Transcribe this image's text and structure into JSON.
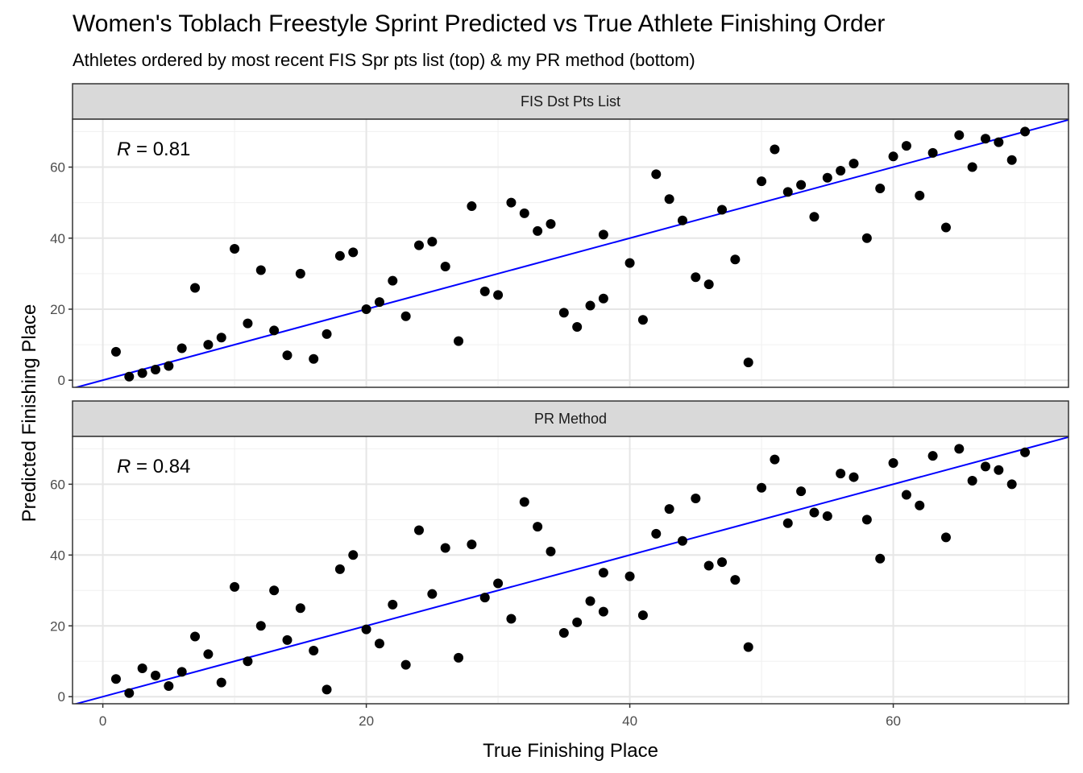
{
  "chart_data": {
    "type": "scatter",
    "title": "Women's Toblach Freestyle Sprint Predicted vs True Athlete Finishing Order",
    "subtitle": "Athletes ordered by most recent FIS Spr pts list (top) & my PR method (bottom)",
    "xlabel": "True Finishing Place",
    "ylabel": "Predicted Finishing Place",
    "xlim": [
      -2.3,
      73.3
    ],
    "ylim": [
      -2,
      73.5
    ],
    "x_ticks": [
      0,
      20,
      40,
      60
    ],
    "y_ticks": [
      0,
      20,
      40,
      60
    ],
    "grid": true,
    "reference_line": {
      "slope": 1,
      "intercept": 0,
      "color": "#0000ff"
    },
    "point_color": "#000000",
    "panels": [
      {
        "strip_label": "FIS Dst Pts List",
        "r_label": "R",
        "r_value": "= 0.81",
        "points": [
          [
            1,
            8
          ],
          [
            2,
            1
          ],
          [
            3,
            2
          ],
          [
            4,
            3
          ],
          [
            5,
            4
          ],
          [
            6,
            9
          ],
          [
            7,
            26
          ],
          [
            8,
            10
          ],
          [
            9,
            12
          ],
          [
            10,
            37
          ],
          [
            11,
            16
          ],
          [
            12,
            31
          ],
          [
            13,
            14
          ],
          [
            14,
            7
          ],
          [
            15,
            30
          ],
          [
            16,
            6
          ],
          [
            17,
            13
          ],
          [
            18,
            35
          ],
          [
            19,
            36
          ],
          [
            20,
            20
          ],
          [
            21,
            22
          ],
          [
            22,
            28
          ],
          [
            23,
            18
          ],
          [
            24,
            38
          ],
          [
            25,
            39
          ],
          [
            26,
            32
          ],
          [
            27,
            11
          ],
          [
            28,
            49
          ],
          [
            29,
            25
          ],
          [
            30,
            24
          ],
          [
            31,
            50
          ],
          [
            32,
            47
          ],
          [
            33,
            42
          ],
          [
            34,
            44
          ],
          [
            35,
            19
          ],
          [
            36,
            15
          ],
          [
            37,
            21
          ],
          [
            38,
            23
          ],
          [
            38,
            41
          ],
          [
            40,
            33
          ],
          [
            41,
            17
          ],
          [
            42,
            58
          ],
          [
            43,
            51
          ],
          [
            44,
            45
          ],
          [
            45,
            29
          ],
          [
            46,
            27
          ],
          [
            47,
            48
          ],
          [
            48,
            34
          ],
          [
            49,
            5
          ],
          [
            50,
            56
          ],
          [
            51,
            65
          ],
          [
            52,
            53
          ],
          [
            53,
            55
          ],
          [
            54,
            46
          ],
          [
            55,
            57
          ],
          [
            56,
            59
          ],
          [
            57,
            61
          ],
          [
            58,
            40
          ],
          [
            59,
            54
          ],
          [
            60,
            63
          ],
          [
            61,
            66
          ],
          [
            62,
            52
          ],
          [
            63,
            64
          ],
          [
            64,
            43
          ],
          [
            65,
            69
          ],
          [
            66,
            60
          ],
          [
            67,
            68
          ],
          [
            68,
            67
          ],
          [
            69,
            62
          ],
          [
            70,
            70
          ]
        ]
      },
      {
        "strip_label": "PR Method",
        "r_label": "R",
        "r_value": "= 0.84",
        "points": [
          [
            1,
            5
          ],
          [
            2,
            1
          ],
          [
            3,
            8
          ],
          [
            4,
            6
          ],
          [
            5,
            3
          ],
          [
            6,
            7
          ],
          [
            7,
            17
          ],
          [
            8,
            12
          ],
          [
            9,
            4
          ],
          [
            10,
            31
          ],
          [
            11,
            10
          ],
          [
            12,
            20
          ],
          [
            13,
            30
          ],
          [
            14,
            16
          ],
          [
            15,
            25
          ],
          [
            16,
            13
          ],
          [
            17,
            2
          ],
          [
            18,
            36
          ],
          [
            19,
            40
          ],
          [
            20,
            19
          ],
          [
            21,
            15
          ],
          [
            22,
            26
          ],
          [
            23,
            9
          ],
          [
            24,
            47
          ],
          [
            25,
            29
          ],
          [
            26,
            42
          ],
          [
            27,
            11
          ],
          [
            28,
            43
          ],
          [
            29,
            28
          ],
          [
            30,
            32
          ],
          [
            31,
            22
          ],
          [
            32,
            55
          ],
          [
            33,
            48
          ],
          [
            34,
            41
          ],
          [
            35,
            18
          ],
          [
            36,
            21
          ],
          [
            37,
            27
          ],
          [
            38,
            24
          ],
          [
            38,
            35
          ],
          [
            40,
            34
          ],
          [
            41,
            23
          ],
          [
            42,
            46
          ],
          [
            43,
            53
          ],
          [
            44,
            44
          ],
          [
            45,
            56
          ],
          [
            46,
            37
          ],
          [
            47,
            38
          ],
          [
            48,
            33
          ],
          [
            49,
            14
          ],
          [
            50,
            59
          ],
          [
            51,
            67
          ],
          [
            52,
            49
          ],
          [
            53,
            58
          ],
          [
            54,
            52
          ],
          [
            55,
            51
          ],
          [
            56,
            63
          ],
          [
            57,
            62
          ],
          [
            58,
            50
          ],
          [
            59,
            39
          ],
          [
            60,
            66
          ],
          [
            61,
            57
          ],
          [
            62,
            54
          ],
          [
            63,
            68
          ],
          [
            64,
            45
          ],
          [
            65,
            70
          ],
          [
            66,
            61
          ],
          [
            67,
            65
          ],
          [
            68,
            64
          ],
          [
            69,
            60
          ],
          [
            70,
            69
          ]
        ]
      }
    ]
  }
}
